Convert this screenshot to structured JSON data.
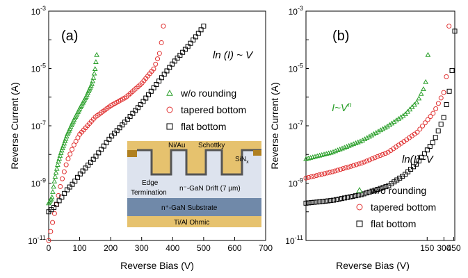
{
  "figure": {
    "panel_a": {
      "label": "(a)",
      "annotation": "ln (I) ~ V",
      "ylabel": "Reverse Current (A)",
      "xlabel": "Reverse Bias (V)",
      "inset": {
        "top_metal": "Ni/Au",
        "schottky": "Schottky",
        "passivation": "SiN",
        "passivation_sub": "x",
        "edge_term_1": "Edge",
        "edge_term_2": "Termination",
        "drift": "n⁻-GaN Drift (7 µm)",
        "substrate": "n⁺-GaN Substrate",
        "ohmic": "Ti/Al Ohmic"
      }
    },
    "panel_b": {
      "label": "(b)",
      "annot_power": "I~V",
      "annot_power_exp": "n",
      "annot_ln": "ln(I)~V",
      "ylabel": "Reverse Current (A)",
      "xlabel": "Reverse Bias (V)"
    }
  },
  "chart_data": [
    {
      "type": "scatter",
      "title": "(a)",
      "xlabel": "Reverse Bias (V)",
      "ylabel": "Reverse Current (A)",
      "xlim": [
        0,
        700
      ],
      "ylim": [
        1e-11,
        0.001
      ],
      "yscale": "log",
      "x_ticks": [
        "0",
        "100",
        "200",
        "300",
        "400",
        "500",
        "600",
        "700"
      ],
      "y_ticks": [
        "10^-11",
        "10^-9",
        "10^-7",
        "10^-5",
        "10^-3"
      ],
      "legend": "upper-right",
      "series": [
        {
          "name": "w/o rounding",
          "marker": "triangle",
          "color": "#2ca02c",
          "x": [
            0,
            10,
            20,
            30,
            40,
            60,
            80,
            100,
            120,
            140,
            145,
            150,
            155
          ],
          "y": [
            2e-10,
            3e-10,
            1.5e-09,
            5e-09,
            1.2e-08,
            5e-08,
            1.5e-07,
            4e-07,
            1e-06,
            3e-06,
            5e-06,
            1e-05,
            3e-05
          ]
        },
        {
          "name": "tapered bottom",
          "marker": "circle",
          "color": "#e03030",
          "x": [
            0,
            20,
            40,
            60,
            80,
            100,
            150,
            200,
            250,
            300,
            340,
            360,
            365,
            370
          ],
          "y": [
            1e-11,
            1e-10,
            1e-09,
            6e-09,
            2e-08,
            5e-08,
            2e-07,
            5e-07,
            1e-06,
            3e-06,
            1e-05,
            4e-05,
            0.0001,
            0.0003
          ]
        },
        {
          "name": "flat bottom",
          "marker": "square",
          "color": "#000000",
          "x": [
            0,
            20,
            40,
            60,
            80,
            100,
            150,
            200,
            250,
            300,
            350,
            400,
            450,
            480,
            500
          ],
          "y": [
            1e-10,
            1.5e-10,
            3e-10,
            6e-10,
            1e-09,
            2e-09,
            8e-09,
            4e-08,
            1.5e-07,
            6e-07,
            3e-06,
            1.5e-05,
            6e-05,
            0.00015,
            0.0003
          ]
        }
      ]
    },
    {
      "type": "scatter",
      "title": "(b)",
      "xlabel": "Reverse Bias (V)",
      "ylabel": "Reverse Current (A)",
      "xscale": "log",
      "xlim": [
        1,
        470
      ],
      "ylim": [
        1e-11,
        0.001
      ],
      "yscale": "log",
      "x_ticks": [
        "150",
        "300",
        "450"
      ],
      "y_ticks": [
        "10^-11",
        "10^-9",
        "10^-7",
        "10^-5",
        "10^-3"
      ],
      "legend": "lower-right",
      "series": [
        {
          "name": "w/o rounding",
          "marker": "triangle",
          "color": "#2ca02c",
          "x": [
            1,
            3,
            10,
            30,
            60,
            100,
            130,
            150,
            155
          ],
          "y": [
            7e-09,
            1.2e-08,
            3e-08,
            1e-07,
            2.5e-07,
            7e-07,
            2e-06,
            5e-06,
            3e-05
          ]
        },
        {
          "name": "tapered bottom",
          "marker": "circle",
          "color": "#e03030",
          "x": [
            1,
            3,
            10,
            30,
            60,
            100,
            200,
            300,
            350,
            370
          ],
          "y": [
            1.5e-09,
            2.5e-09,
            5e-09,
            1.2e-08,
            3e-08,
            6e-08,
            3e-07,
            1.5e-06,
            1e-05,
            0.0003
          ]
        },
        {
          "name": "flat bottom",
          "marker": "square",
          "color": "#000000",
          "x": [
            1,
            3,
            10,
            30,
            60,
            100,
            200,
            300,
            400,
            450,
            470
          ],
          "y": [
            2e-10,
            2.5e-10,
            4e-10,
            8e-10,
            2e-09,
            5e-09,
            3e-08,
            2e-07,
            3e-06,
            4e-05,
            0.0002
          ]
        }
      ]
    }
  ]
}
